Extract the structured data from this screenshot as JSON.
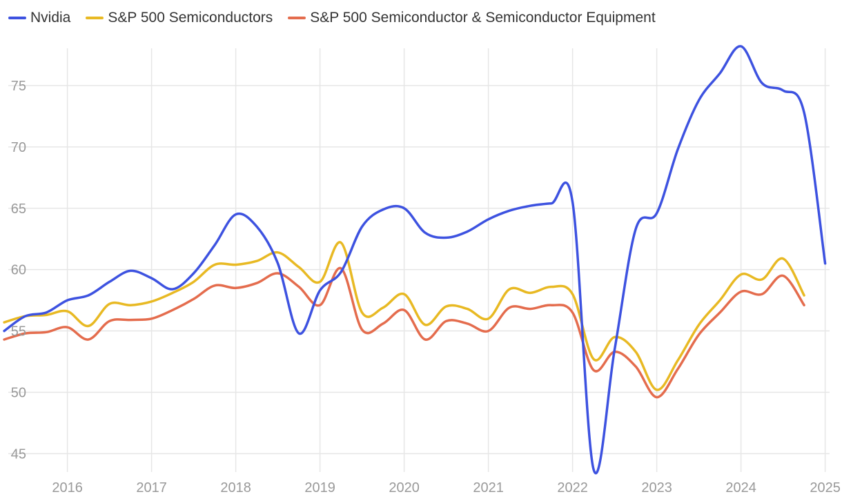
{
  "chart_data": {
    "type": "line",
    "title": "",
    "xlabel": "",
    "ylabel": "",
    "ylim": [
      43.5,
      79.5
    ],
    "yticks": [
      45,
      50,
      55,
      60,
      65,
      70,
      75
    ],
    "xlim": [
      2015.2,
      2025.2
    ],
    "xticks": [
      2016,
      2017,
      2018,
      2019,
      2020,
      2021,
      2022,
      2023,
      2024,
      2025
    ],
    "grid": true,
    "legend_position": "top-left",
    "series": [
      {
        "name": "Nvidia",
        "color": "#3d52e0",
        "x": [
          2015.25,
          2015.5,
          2015.75,
          2016.0,
          2016.25,
          2016.5,
          2016.75,
          2017.0,
          2017.25,
          2017.5,
          2017.75,
          2018.0,
          2018.25,
          2018.5,
          2018.75,
          2019.0,
          2019.25,
          2019.5,
          2019.75,
          2020.0,
          2020.25,
          2020.5,
          2020.75,
          2021.0,
          2021.25,
          2021.5,
          2021.75,
          2022.0,
          2022.25,
          2022.5,
          2022.75,
          2023.0,
          2023.25,
          2023.5,
          2023.75,
          2024.0,
          2024.25,
          2024.5,
          2024.75,
          2025.0
        ],
        "y": [
          55.0,
          56.2,
          56.5,
          57.5,
          57.9,
          59.0,
          59.9,
          59.3,
          58.4,
          59.7,
          62.0,
          64.5,
          63.5,
          60.5,
          54.8,
          58.3,
          59.8,
          63.5,
          64.9,
          65.0,
          63.0,
          62.6,
          63.1,
          64.1,
          64.8,
          65.2,
          65.4,
          65.5,
          43.7,
          53.5,
          63.3,
          64.6,
          69.8,
          73.8,
          76.0,
          78.2,
          75.2,
          74.6,
          72.8,
          60.5
        ]
      },
      {
        "name": "S&P 500 Semiconductors",
        "color": "#e8b923",
        "x": [
          2015.25,
          2015.5,
          2015.75,
          2016.0,
          2016.25,
          2016.5,
          2016.75,
          2017.0,
          2017.25,
          2017.5,
          2017.75,
          2018.0,
          2018.25,
          2018.5,
          2018.75,
          2019.0,
          2019.25,
          2019.5,
          2019.75,
          2020.0,
          2020.25,
          2020.5,
          2020.75,
          2021.0,
          2021.25,
          2021.5,
          2021.75,
          2022.0,
          2022.25,
          2022.5,
          2022.75,
          2023.0,
          2023.25,
          2023.5,
          2023.75,
          2024.0,
          2024.25,
          2024.5,
          2024.75
        ],
        "y": [
          55.7,
          56.2,
          56.3,
          56.6,
          55.4,
          57.2,
          57.1,
          57.4,
          58.1,
          59.0,
          60.4,
          60.4,
          60.7,
          61.4,
          60.2,
          59.0,
          62.2,
          56.5,
          56.9,
          58.0,
          55.5,
          57.0,
          56.8,
          56.0,
          58.4,
          58.1,
          58.6,
          58.0,
          52.7,
          54.5,
          53.3,
          50.2,
          52.6,
          55.5,
          57.5,
          59.6,
          59.2,
          60.9,
          57.9
        ]
      },
      {
        "name": "S&P 500 Semiconductor & Semiconductor Equipment",
        "color": "#e46c4d",
        "x": [
          2015.25,
          2015.5,
          2015.75,
          2016.0,
          2016.25,
          2016.5,
          2016.75,
          2017.0,
          2017.25,
          2017.5,
          2017.75,
          2018.0,
          2018.25,
          2018.5,
          2018.75,
          2019.0,
          2019.25,
          2019.5,
          2019.75,
          2020.0,
          2020.25,
          2020.5,
          2020.75,
          2021.0,
          2021.25,
          2021.5,
          2021.75,
          2022.0,
          2022.25,
          2022.5,
          2022.75,
          2023.0,
          2023.25,
          2023.5,
          2023.75,
          2024.0,
          2024.25,
          2024.5,
          2024.75
        ],
        "y": [
          54.3,
          54.8,
          54.9,
          55.3,
          54.3,
          55.8,
          55.9,
          56.0,
          56.7,
          57.6,
          58.7,
          58.5,
          58.9,
          59.7,
          58.6,
          57.1,
          60.1,
          55.1,
          55.6,
          56.7,
          54.3,
          55.8,
          55.6,
          55.0,
          56.9,
          56.8,
          57.1,
          56.5,
          51.8,
          53.3,
          52.1,
          49.6,
          51.9,
          54.7,
          56.5,
          58.2,
          58.0,
          59.5,
          57.1
        ]
      }
    ]
  }
}
